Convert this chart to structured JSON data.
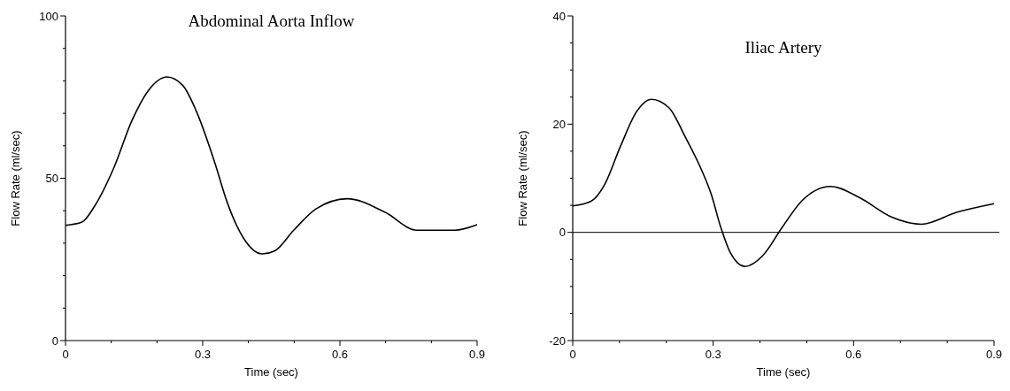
{
  "chart_data": [
    {
      "type": "line",
      "title": "Abdominal Aorta Inflow",
      "xlabel": "Time (sec)",
      "ylabel": "Flow Rate (ml/sec)",
      "xlim": [
        0,
        0.9
      ],
      "ylim": [
        0,
        100
      ],
      "xticks": [
        0,
        {
          "value": 0.1,
          "label": null
        },
        {
          "value": 0.2,
          "label": null
        },
        0.3,
        {
          "value": 0.4,
          "label": null
        },
        {
          "value": 0.5,
          "label": null
        },
        0.6,
        {
          "value": 0.7,
          "label": null
        },
        {
          "value": 0.8,
          "label": null
        },
        0.9
      ],
      "yticks": [
        0,
        {
          "value": 10,
          "label": null
        },
        {
          "value": 20,
          "label": null
        },
        {
          "value": 30,
          "label": null
        },
        {
          "value": 40,
          "label": null
        },
        50,
        {
          "value": 60,
          "label": null
        },
        {
          "value": 70,
          "label": null
        },
        {
          "value": 80,
          "label": null
        },
        {
          "value": 90,
          "label": null
        },
        100
      ],
      "grid": false,
      "marker": "none",
      "line_style": "solid",
      "series": [
        {
          "color": "#000000",
          "x": [
            0,
            0.036,
            0.064,
            0.105,
            0.146,
            0.181,
            0.222,
            0.257,
            0.285,
            0.326,
            0.354,
            0.389,
            0.43,
            0.457,
            0.499,
            0.547,
            0.616,
            0.699,
            0.768,
            0.851,
            0.9
          ],
          "values": [
            35.5,
            36.5,
            41.5,
            53,
            68,
            77,
            81.2,
            78.5,
            71,
            55,
            42.4,
            31.6,
            26.7,
            27.6,
            34,
            40.5,
            43.7,
            39.5,
            34,
            34,
            35.7
          ]
        }
      ]
    },
    {
      "type": "line",
      "title": "Iliac Artery",
      "xlabel": "Time (sec)",
      "ylabel": "Flow Rate (ml/sec)",
      "xlim": [
        0,
        0.9
      ],
      "ylim": [
        -20,
        40
      ],
      "xticks": [
        0,
        {
          "value": 0.1,
          "label": null
        },
        {
          "value": 0.2,
          "label": null
        },
        0.3,
        {
          "value": 0.4,
          "label": null
        },
        {
          "value": 0.5,
          "label": null
        },
        0.6,
        {
          "value": 0.7,
          "label": null
        },
        {
          "value": 0.8,
          "label": null
        },
        0.9
      ],
      "yticks": [
        -20,
        {
          "value": -15,
          "label": null
        },
        {
          "value": -10,
          "label": null
        },
        {
          "value": -5,
          "label": null
        },
        0,
        {
          "value": 5,
          "label": null
        },
        {
          "value": 10,
          "label": null
        },
        {
          "value": 15,
          "label": null
        },
        20,
        {
          "value": 25,
          "label": null
        },
        {
          "value": 30,
          "label": null
        },
        {
          "value": 35,
          "label": null
        },
        40
      ],
      "grid": false,
      "marker": "none",
      "line_style": "solid",
      "ref_lines": [
        {
          "axis": "y",
          "value": 0,
          "color": "#000000"
        }
      ],
      "series": [
        {
          "color": "#000000",
          "x": [
            0,
            0.04,
            0.068,
            0.102,
            0.137,
            0.168,
            0.206,
            0.24,
            0.268,
            0.296,
            0.316,
            0.337,
            0.368,
            0.406,
            0.448,
            0.489,
            0.551,
            0.613,
            0.682,
            0.745,
            0.82,
            0.9
          ],
          "values": [
            4.9,
            5.8,
            8.8,
            15.9,
            22.4,
            24.6,
            23,
            17.7,
            12.9,
            7,
            1,
            -3.8,
            -6.3,
            -4.3,
            1,
            5.8,
            8.5,
            6.4,
            2.8,
            1.5,
            3.7,
            5.3
          ]
        }
      ]
    }
  ]
}
